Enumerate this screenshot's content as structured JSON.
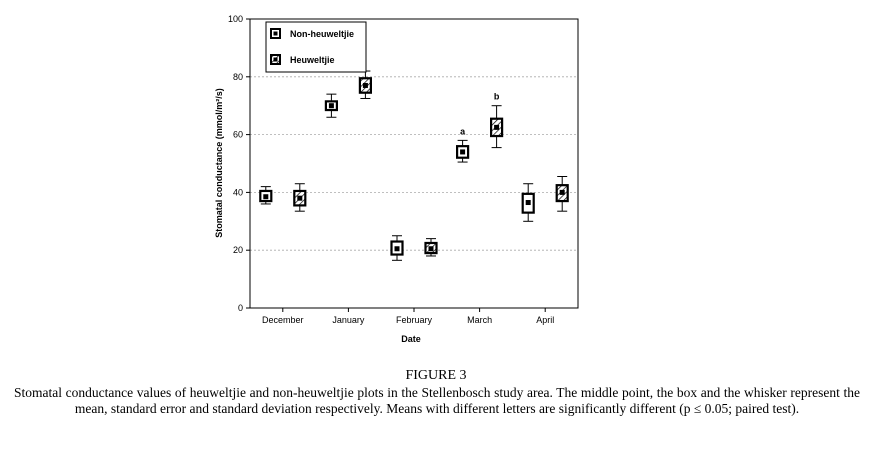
{
  "chart_data": {
    "type": "boxplot",
    "xlabel": "Date",
    "ylabel": "Stomatal conductance (mmol/m²/s)",
    "ylim": [
      0,
      100
    ],
    "yticks": [
      0,
      20,
      40,
      60,
      80,
      100
    ],
    "grid": "horizontal dashed",
    "legend_position": "top-left",
    "categories": [
      "December",
      "January",
      "February",
      "March",
      "April"
    ],
    "series": [
      {
        "name": "Non-heuweltjie",
        "fill": "open square",
        "mean": [
          38.5,
          70,
          20.5,
          54,
          36.5
        ],
        "se_low": [
          37,
          68.5,
          18.5,
          52,
          33
        ],
        "se_high": [
          40.5,
          71.5,
          23,
          56,
          39.5
        ],
        "sd_low": [
          36,
          66,
          16.5,
          50.5,
          30
        ],
        "sd_high": [
          42,
          74,
          25,
          58,
          43
        ]
      },
      {
        "name": "Heuweltjie",
        "fill": "hatched",
        "mean": [
          38,
          77,
          20.5,
          62.5,
          40
        ],
        "se_low": [
          35.5,
          74.5,
          19,
          59.5,
          37
        ],
        "se_high": [
          40.5,
          79.5,
          22.5,
          65.5,
          42.5
        ],
        "sd_low": [
          33.5,
          72.5,
          18,
          55.5,
          33.5
        ],
        "sd_high": [
          43,
          82,
          24,
          70,
          45.5
        ]
      }
    ],
    "annotations": [
      {
        "category": "March",
        "series": "Non-heuweltjie",
        "text": "a"
      },
      {
        "category": "March",
        "series": "Heuweltjie",
        "text": "b"
      }
    ]
  },
  "figure": {
    "label": "FIGURE 3",
    "caption": "Stomatal conductance values of heuweltjie and non-heuweltjie plots in the Stellenbosch study area. The middle point, the box and the whisker represent the mean, standard error and standard deviation respectively. Means with different letters are significantly different (p ≤ 0.05; paired test)."
  }
}
